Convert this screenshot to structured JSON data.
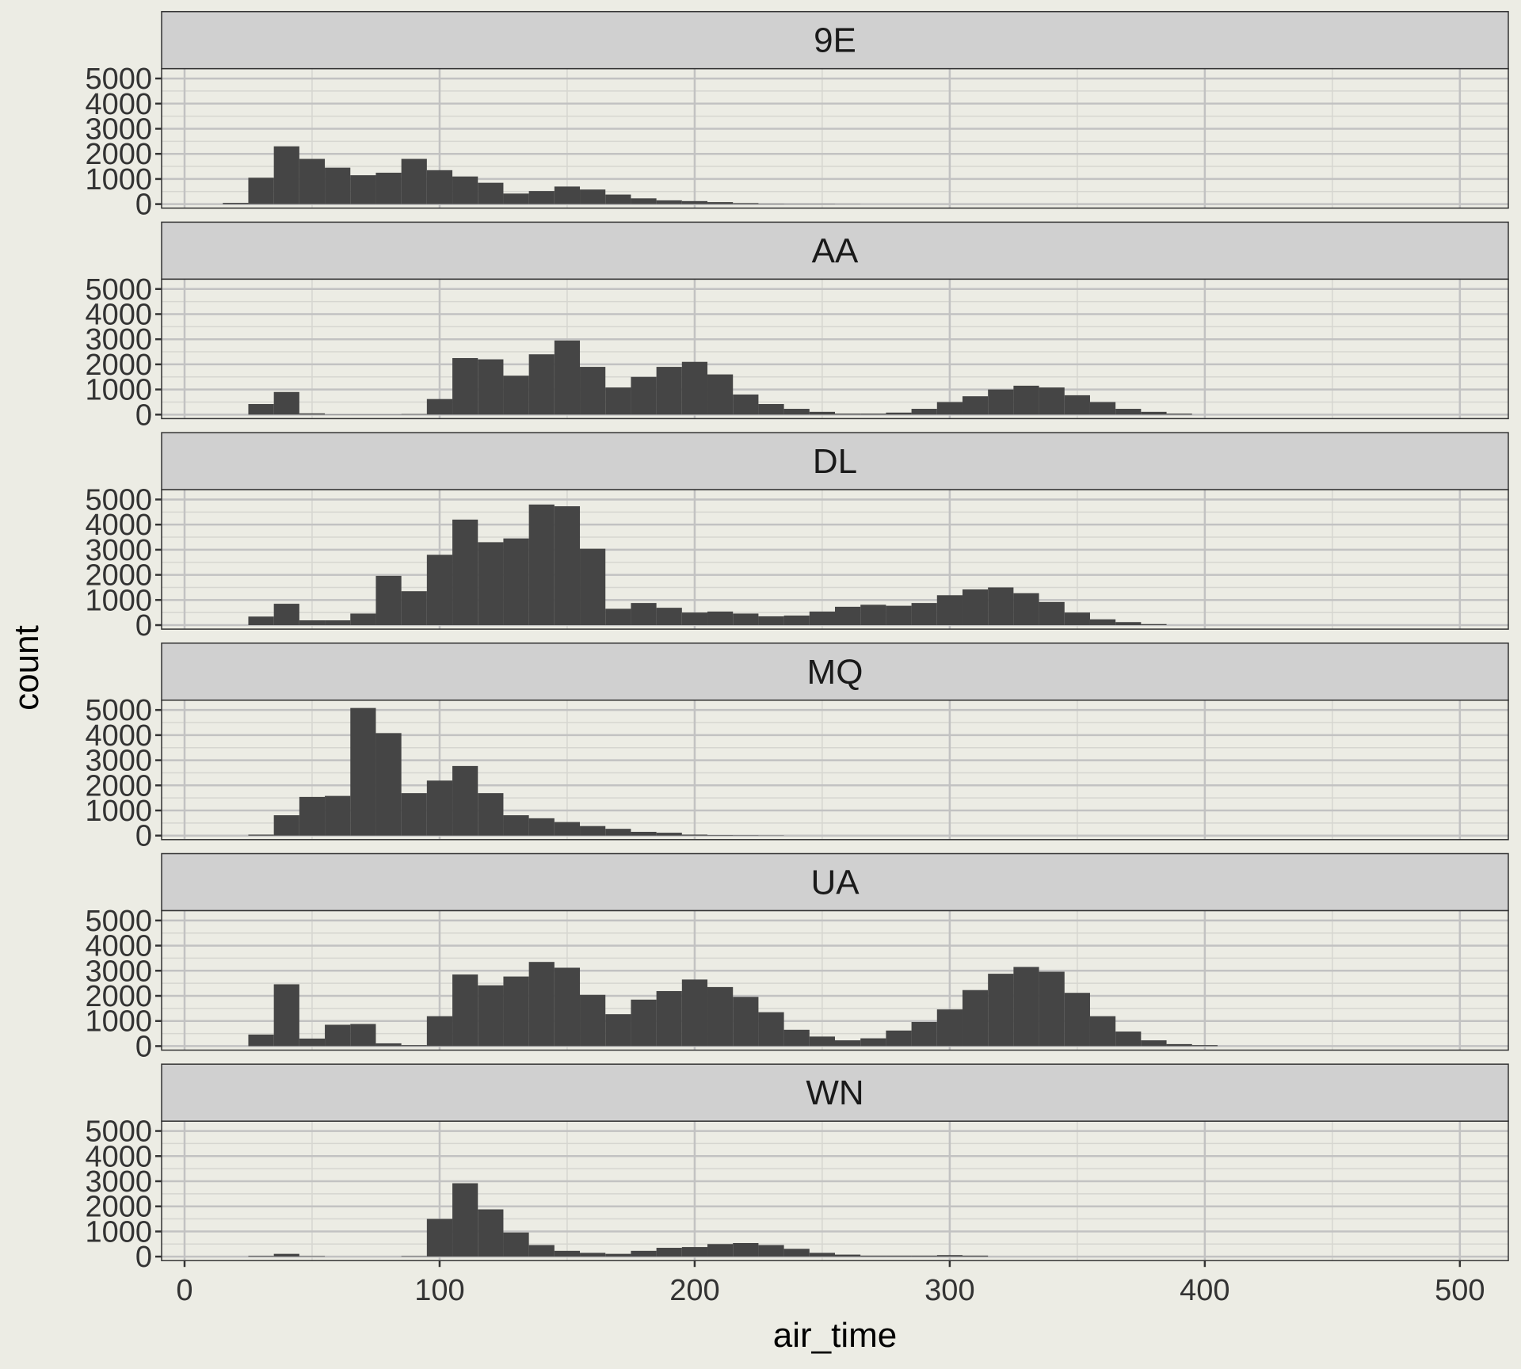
{
  "chart_data": {
    "type": "bar",
    "subtype": "faceted-histogram",
    "xlabel": "air_time",
    "ylabel": "count",
    "xlim": [
      -9,
      519
    ],
    "ylim": [
      -160,
      5390
    ],
    "xticks": [
      0,
      100,
      200,
      300,
      400,
      500
    ],
    "yticks": [
      0,
      1000,
      2000,
      3000,
      4000,
      5000
    ],
    "bin_width": 10,
    "grid": true,
    "colors": {
      "background": "#ECECE4",
      "strip": "#D0D0D0",
      "bar": "#454545",
      "grid_major": "#C2C2C2",
      "grid_minor": "#D6D6D0",
      "border": "#333333",
      "text": "#333333"
    },
    "facets": [
      {
        "label": "9E",
        "bins": [
          [
            20,
            50
          ],
          [
            30,
            1050
          ],
          [
            40,
            2300
          ],
          [
            50,
            1800
          ],
          [
            60,
            1450
          ],
          [
            70,
            1150
          ],
          [
            80,
            1250
          ],
          [
            90,
            1800
          ],
          [
            100,
            1350
          ],
          [
            110,
            1100
          ],
          [
            120,
            850
          ],
          [
            130,
            420
          ],
          [
            140,
            520
          ],
          [
            150,
            700
          ],
          [
            160,
            580
          ],
          [
            170,
            380
          ],
          [
            180,
            230
          ],
          [
            190,
            150
          ],
          [
            200,
            120
          ],
          [
            210,
            80
          ],
          [
            220,
            40
          ],
          [
            230,
            15
          ],
          [
            240,
            10
          ],
          [
            250,
            10
          ],
          [
            260,
            5
          ]
        ]
      },
      {
        "label": "AA",
        "bins": [
          [
            30,
            420
          ],
          [
            40,
            900
          ],
          [
            50,
            50
          ],
          [
            60,
            10
          ],
          [
            70,
            10
          ],
          [
            80,
            10
          ],
          [
            90,
            20
          ],
          [
            100,
            620
          ],
          [
            110,
            2250
          ],
          [
            120,
            2200
          ],
          [
            130,
            1550
          ],
          [
            140,
            2400
          ],
          [
            150,
            2950
          ],
          [
            160,
            1900
          ],
          [
            170,
            1080
          ],
          [
            180,
            1500
          ],
          [
            190,
            1900
          ],
          [
            200,
            2100
          ],
          [
            210,
            1600
          ],
          [
            220,
            800
          ],
          [
            230,
            420
          ],
          [
            240,
            230
          ],
          [
            250,
            110
          ],
          [
            260,
            40
          ],
          [
            270,
            40
          ],
          [
            280,
            80
          ],
          [
            290,
            230
          ],
          [
            300,
            500
          ],
          [
            310,
            730
          ],
          [
            320,
            1000
          ],
          [
            330,
            1150
          ],
          [
            340,
            1080
          ],
          [
            350,
            770
          ],
          [
            360,
            500
          ],
          [
            370,
            230
          ],
          [
            380,
            110
          ],
          [
            390,
            40
          ]
        ]
      },
      {
        "label": "DL",
        "bins": [
          [
            30,
            340
          ],
          [
            40,
            850
          ],
          [
            50,
            190
          ],
          [
            60,
            190
          ],
          [
            70,
            460
          ],
          [
            80,
            1960
          ],
          [
            90,
            1350
          ],
          [
            100,
            2800
          ],
          [
            110,
            4200
          ],
          [
            120,
            3300
          ],
          [
            130,
            3450
          ],
          [
            140,
            4800
          ],
          [
            150,
            4730
          ],
          [
            160,
            3040
          ],
          [
            170,
            650
          ],
          [
            180,
            880
          ],
          [
            190,
            690
          ],
          [
            200,
            500
          ],
          [
            210,
            540
          ],
          [
            220,
            460
          ],
          [
            230,
            350
          ],
          [
            240,
            380
          ],
          [
            250,
            540
          ],
          [
            260,
            730
          ],
          [
            270,
            810
          ],
          [
            280,
            770
          ],
          [
            290,
            880
          ],
          [
            300,
            1190
          ],
          [
            310,
            1420
          ],
          [
            320,
            1500
          ],
          [
            330,
            1270
          ],
          [
            340,
            920
          ],
          [
            350,
            500
          ],
          [
            360,
            230
          ],
          [
            370,
            120
          ],
          [
            380,
            40
          ]
        ]
      },
      {
        "label": "MQ",
        "bins": [
          [
            30,
            40
          ],
          [
            40,
            810
          ],
          [
            50,
            1540
          ],
          [
            60,
            1580
          ],
          [
            70,
            5080
          ],
          [
            80,
            4080
          ],
          [
            90,
            1690
          ],
          [
            100,
            2190
          ],
          [
            110,
            2770
          ],
          [
            120,
            1690
          ],
          [
            130,
            810
          ],
          [
            140,
            690
          ],
          [
            150,
            540
          ],
          [
            160,
            380
          ],
          [
            170,
            270
          ],
          [
            180,
            150
          ],
          [
            190,
            115
          ],
          [
            200,
            40
          ],
          [
            210,
            20
          ],
          [
            220,
            15
          ],
          [
            230,
            10
          ]
        ]
      },
      {
        "label": "UA",
        "bins": [
          [
            30,
            460
          ],
          [
            40,
            2460
          ],
          [
            50,
            300
          ],
          [
            60,
            850
          ],
          [
            70,
            880
          ],
          [
            80,
            110
          ],
          [
            90,
            40
          ],
          [
            100,
            1190
          ],
          [
            110,
            2850
          ],
          [
            120,
            2420
          ],
          [
            130,
            2770
          ],
          [
            140,
            3350
          ],
          [
            150,
            3120
          ],
          [
            160,
            2040
          ],
          [
            170,
            1270
          ],
          [
            180,
            1850
          ],
          [
            190,
            2190
          ],
          [
            200,
            2650
          ],
          [
            210,
            2350
          ],
          [
            220,
            1960
          ],
          [
            230,
            1350
          ],
          [
            240,
            650
          ],
          [
            250,
            380
          ],
          [
            260,
            230
          ],
          [
            270,
            310
          ],
          [
            280,
            620
          ],
          [
            290,
            960
          ],
          [
            300,
            1460
          ],
          [
            310,
            2230
          ],
          [
            320,
            2880
          ],
          [
            330,
            3150
          ],
          [
            340,
            2960
          ],
          [
            350,
            2120
          ],
          [
            360,
            1190
          ],
          [
            370,
            580
          ],
          [
            380,
            230
          ],
          [
            390,
            80
          ],
          [
            400,
            40
          ]
        ]
      },
      {
        "label": "WN",
        "bins": [
          [
            30,
            30
          ],
          [
            40,
            110
          ],
          [
            50,
            20
          ],
          [
            90,
            20
          ],
          [
            100,
            1500
          ],
          [
            110,
            2920
          ],
          [
            120,
            1880
          ],
          [
            130,
            960
          ],
          [
            140,
            460
          ],
          [
            150,
            230
          ],
          [
            160,
            150
          ],
          [
            170,
            110
          ],
          [
            180,
            230
          ],
          [
            190,
            350
          ],
          [
            200,
            380
          ],
          [
            210,
            500
          ],
          [
            220,
            540
          ],
          [
            230,
            460
          ],
          [
            240,
            310
          ],
          [
            250,
            150
          ],
          [
            260,
            80
          ],
          [
            270,
            40
          ],
          [
            280,
            40
          ],
          [
            290,
            40
          ],
          [
            300,
            60
          ],
          [
            310,
            40
          ]
        ]
      }
    ]
  }
}
